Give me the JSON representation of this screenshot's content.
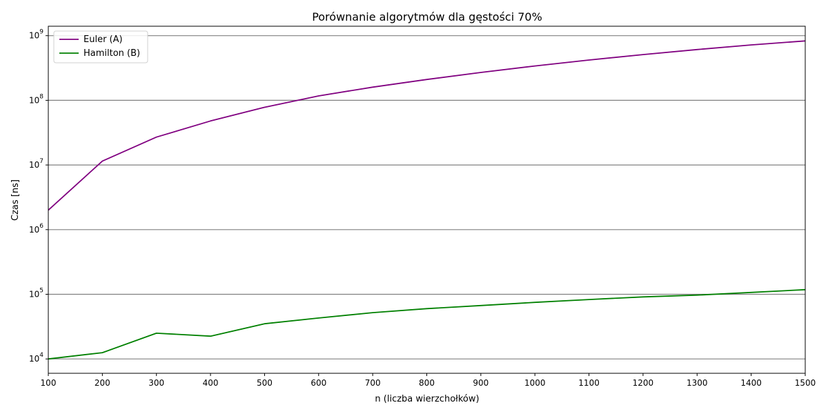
{
  "chart_data": {
    "type": "line",
    "title": "Porównanie algorytmów dla gęstości 70%",
    "xlabel": "n (liczba wierzchołków)",
    "ylabel": "Czas [ns]",
    "x": [
      100,
      200,
      300,
      400,
      500,
      600,
      700,
      800,
      900,
      1000,
      1100,
      1200,
      1300,
      1400,
      1500
    ],
    "xlim": [
      100,
      1500
    ],
    "x_ticks": [
      100,
      200,
      300,
      400,
      500,
      600,
      700,
      800,
      900,
      1000,
      1100,
      1200,
      1300,
      1400,
      1500
    ],
    "yscale": "log",
    "ylim": [
      6000,
      1400000000
    ],
    "y_ticks": [
      {
        "value": 10000,
        "base": "10",
        "exp": "4"
      },
      {
        "value": 100000,
        "base": "10",
        "exp": "5"
      },
      {
        "value": 1000000,
        "base": "10",
        "exp": "6"
      },
      {
        "value": 10000000,
        "base": "10",
        "exp": "7"
      },
      {
        "value": 100000000,
        "base": "10",
        "exp": "8"
      },
      {
        "value": 1000000000,
        "base": "10",
        "exp": "9"
      }
    ],
    "grid": "horizontal",
    "legend_position": "top-left",
    "series": [
      {
        "name": "Euler (A)",
        "color": "#800080",
        "values": [
          2000000,
          11500000,
          27000000,
          48000000,
          78000000,
          117000000,
          160000000,
          210000000,
          270000000,
          340000000,
          420000000,
          510000000,
          610000000,
          720000000,
          830000000
        ]
      },
      {
        "name": "Hamilton (B)",
        "color": "#008000",
        "values": [
          10000,
          12500,
          25000,
          22500,
          35000,
          43000,
          52000,
          60000,
          67000,
          75000,
          83000,
          91000,
          97000,
          107000,
          118000
        ]
      }
    ]
  }
}
